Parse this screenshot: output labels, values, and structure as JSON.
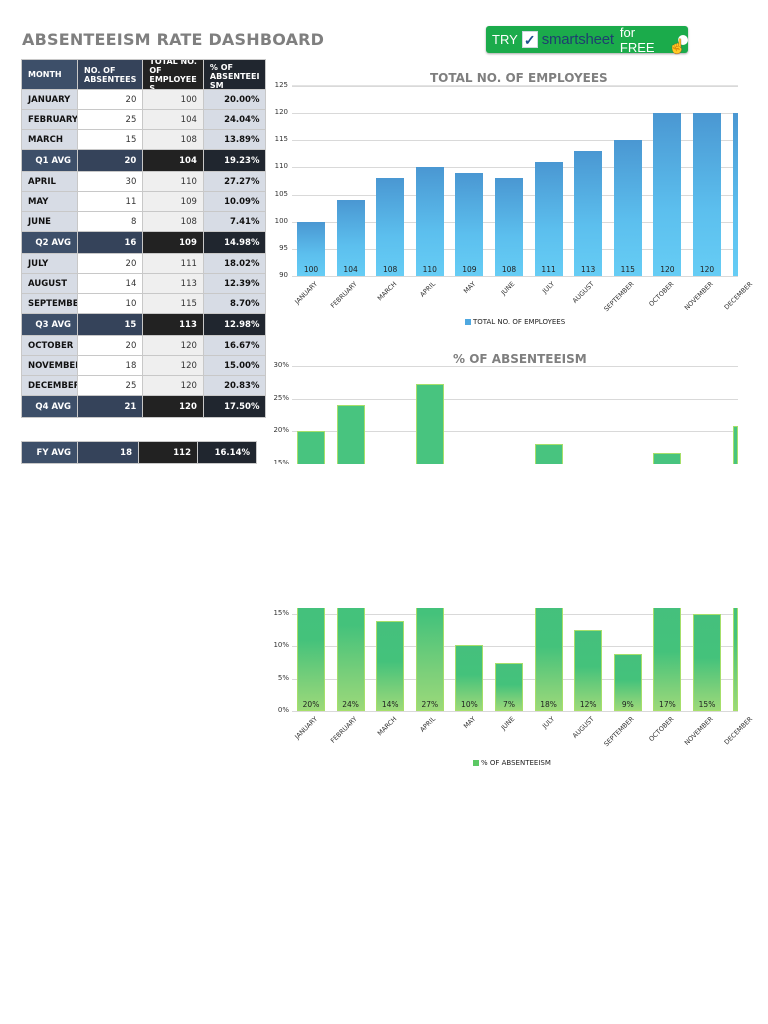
{
  "title": "ABSENTEEISM RATE DASHBOARD",
  "cta": {
    "try_label": "TRY",
    "check_glyph": "✓",
    "brand": "smartsheet",
    "free_label": "for FREE",
    "hand_glyph": "☝"
  },
  "table": {
    "headers": {
      "month": "MONTH",
      "absentees": "NO. OF ABSENTEES",
      "total": "TOTAL NO. OF EMPLOYEES",
      "percent": "% OF ABSENTEEISM"
    },
    "header_display": {
      "absentees_l1": "NO. OF",
      "absentees_l2": "ABSENTEES",
      "total_l0": "TOTAL NO.",
      "total_l1": "OF",
      "total_l2": "EMPLOYEE",
      "total_l3": "S",
      "percent_l1": "% OF",
      "percent_l2": "ABSENTEEI",
      "percent_l3": "SM"
    },
    "rows": [
      {
        "month": "JANUARY",
        "absentees": "20",
        "total": "100",
        "percent": "20.00%"
      },
      {
        "month": "FEBRUARY",
        "absentees": "25",
        "total": "104",
        "percent": "24.04%"
      },
      {
        "month": "MARCH",
        "absentees": "15",
        "total": "108",
        "percent": "13.89%"
      },
      {
        "month": "Q1 AVG",
        "absentees": "20",
        "total": "104",
        "percent": "19.23%"
      },
      {
        "month": "APRIL",
        "absentees": "30",
        "total": "110",
        "percent": "27.27%"
      },
      {
        "month": "MAY",
        "absentees": "11",
        "total": "109",
        "percent": "10.09%"
      },
      {
        "month": "JUNE",
        "absentees": "8",
        "total": "108",
        "percent": "7.41%"
      },
      {
        "month": "Q2 AVG",
        "absentees": "16",
        "total": "109",
        "percent": "14.98%"
      },
      {
        "month": "JULY",
        "absentees": "20",
        "total": "111",
        "percent": "18.02%"
      },
      {
        "month": "AUGUST",
        "absentees": "14",
        "total": "113",
        "percent": "12.39%"
      },
      {
        "month": "SEPTEMBER",
        "absentees": "10",
        "total": "115",
        "percent": "8.70%"
      },
      {
        "month": "Q3 AVG",
        "absentees": "15",
        "total": "113",
        "percent": "12.98%"
      },
      {
        "month": "OCTOBER",
        "absentees": "20",
        "total": "120",
        "percent": "16.67%"
      },
      {
        "month": "NOVEMBER",
        "absentees": "18",
        "total": "120",
        "percent": "15.00%"
      },
      {
        "month": "DECEMBER",
        "absentees": "25",
        "total": "120",
        "percent": "20.83%"
      },
      {
        "month": "Q4 AVG",
        "absentees": "21",
        "total": "120",
        "percent": "17.50%"
      }
    ],
    "fy": {
      "month": "FY AVG",
      "absentees": "18",
      "total": "112",
      "percent": "16.14%"
    }
  },
  "chart_data": [
    {
      "type": "bar",
      "title": "TOTAL NO. OF EMPLOYEES",
      "categories": [
        "JANUARY",
        "FEBRUARY",
        "MARCH",
        "APRIL",
        "MAY",
        "JUNE",
        "JULY",
        "AUGUST",
        "SEPTEMBER",
        "OCTOBER",
        "NOVEMBER",
        "DECEMBER"
      ],
      "series": [
        {
          "name": "TOTAL NO. OF EMPLOYEES",
          "values": [
            100,
            104,
            108,
            110,
            109,
            108,
            111,
            113,
            115,
            120,
            120,
            120
          ]
        }
      ],
      "data_labels": [
        "100",
        "104",
        "108",
        "110",
        "109",
        "108",
        "111",
        "113",
        "115",
        "120",
        "120",
        ""
      ],
      "y_ticks": [
        "90",
        "95",
        "100",
        "105",
        "110",
        "115",
        "120",
        "125"
      ],
      "ylim": [
        90,
        125
      ],
      "grid": true,
      "legend_position": "bottom",
      "color": "#4fa8e0"
    },
    {
      "type": "bar",
      "title": "% OF ABSENTEEISM",
      "categories": [
        "JANUARY",
        "FEBRUARY",
        "MARCH",
        "APRIL",
        "MAY",
        "JUNE",
        "JULY",
        "AUGUST",
        "SEPTEMBER",
        "OCTOBER",
        "NOVEMBER",
        "DECEMBER"
      ],
      "series": [
        {
          "name": "% OF ABSENTEEISM",
          "values": [
            20.0,
            24.04,
            13.89,
            27.27,
            10.09,
            7.41,
            18.02,
            12.39,
            8.7,
            16.67,
            15.0,
            20.83
          ]
        }
      ],
      "data_labels": [
        "20%",
        "24%",
        "14%",
        "27%",
        "10%",
        "7%",
        "18%",
        "12%",
        "9%",
        "17%",
        "15%",
        ""
      ],
      "y_ticks": [
        "0%",
        "5%",
        "10%",
        "15%",
        "20%",
        "25%",
        "30%"
      ],
      "ylim": [
        0,
        30
      ],
      "grid": true,
      "legend_position": "bottom",
      "color": "#45c07d"
    }
  ]
}
